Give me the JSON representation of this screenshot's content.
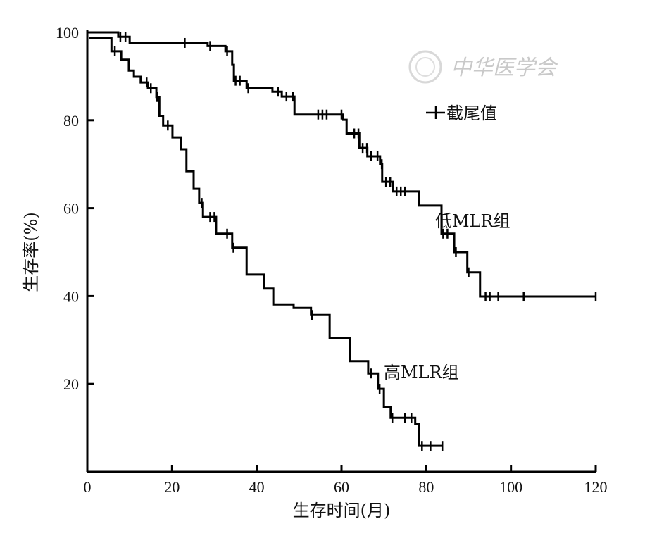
{
  "chart_data": {
    "type": "line",
    "subtype": "kaplan-meier",
    "title": "",
    "xlabel": "生存时间(月)",
    "ylabel": "生存率(%)",
    "xlim": [
      0,
      120
    ],
    "ylim": [
      0,
      100
    ],
    "xticks": [
      "0",
      "20",
      "40",
      "60",
      "80",
      "100",
      "120"
    ],
    "yticks": [
      "20",
      "40",
      "60",
      "80",
      "100"
    ],
    "grid": false,
    "legend": {
      "label": "截尾值",
      "symbol": "+",
      "placement": "top-right"
    },
    "series": [
      {
        "name": "低MLR组",
        "steps": [
          [
            0,
            100
          ],
          [
            7.3,
            99
          ],
          [
            10,
            97.6
          ],
          [
            28.4,
            96.9
          ],
          [
            32.6,
            95.7
          ],
          [
            34.2,
            92.6
          ],
          [
            34.6,
            89
          ],
          [
            37.6,
            87.3
          ],
          [
            43.7,
            86.5
          ],
          [
            45.9,
            85.4
          ],
          [
            48.9,
            81.3
          ],
          [
            60.3,
            80.1
          ],
          [
            61.2,
            77
          ],
          [
            64.2,
            73.7
          ],
          [
            66.1,
            71.8
          ],
          [
            69.1,
            70
          ],
          [
            69.6,
            66
          ],
          [
            72.1,
            63.8
          ],
          [
            78.3,
            60.6
          ],
          [
            83.6,
            54.2
          ],
          [
            86.6,
            50
          ],
          [
            89.7,
            45.4
          ],
          [
            92.7,
            39.9
          ],
          [
            120,
            39.9
          ]
        ],
        "censored": [
          7.8,
          9,
          23,
          29,
          33,
          35,
          36,
          38,
          45,
          47,
          48.5,
          54.5,
          55.5,
          56.5,
          60,
          63,
          64,
          65,
          66,
          67,
          68.5,
          69.5,
          70.5,
          71.5,
          73,
          74,
          75,
          84,
          85,
          87,
          90,
          94,
          95,
          97,
          103,
          120
        ]
      },
      {
        "name": "高MLR组",
        "steps": [
          [
            0.5,
            98.7
          ],
          [
            5.7,
            95.7
          ],
          [
            8,
            93.8
          ],
          [
            9.8,
            91.3
          ],
          [
            11,
            89.9
          ],
          [
            12.6,
            88.6
          ],
          [
            14.3,
            87.3
          ],
          [
            16.3,
            85.3
          ],
          [
            17,
            81
          ],
          [
            17.9,
            78.8
          ],
          [
            20.1,
            76.1
          ],
          [
            22.1,
            73.4
          ],
          [
            23.4,
            68.4
          ],
          [
            25.1,
            64.4
          ],
          [
            26.4,
            61.2
          ],
          [
            27.3,
            58
          ],
          [
            30.4,
            54.2
          ],
          [
            34.2,
            51
          ],
          [
            37.6,
            44.9
          ],
          [
            41.7,
            41.7
          ],
          [
            43.9,
            38.1
          ],
          [
            48.7,
            37.3
          ],
          [
            52.8,
            35.7
          ],
          [
            57.2,
            30.4
          ],
          [
            62,
            25.2
          ],
          [
            66.3,
            22.4
          ],
          [
            68.6,
            18.9
          ],
          [
            70,
            14.7
          ],
          [
            71.6,
            12.3
          ],
          [
            77.4,
            10.9
          ],
          [
            78.3,
            5.9
          ],
          [
            83.8,
            5.9
          ]
        ],
        "censored": [
          6.5,
          14,
          15,
          16.5,
          19,
          27,
          29,
          30,
          33,
          34.5,
          53,
          67,
          69,
          72,
          75,
          76.5,
          79,
          81,
          83.8
        ]
      }
    ],
    "watermark": "中华医学会"
  }
}
